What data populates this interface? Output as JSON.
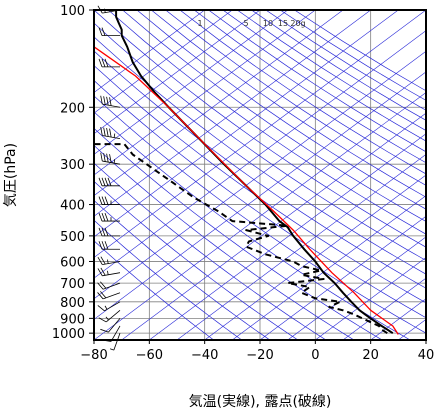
{
  "chart_data": {
    "type": "line",
    "title": "",
    "xlabel": "気温(実線), 露点(破線)",
    "ylabel": "気圧(hPa)",
    "xlim": [
      -80,
      40
    ],
    "ylim": [
      1050,
      100
    ],
    "y_scale": "log",
    "x_ticks": [
      -80,
      -60,
      -40,
      -20,
      0,
      20,
      40
    ],
    "y_ticks": [
      100,
      200,
      300,
      400,
      500,
      600,
      700,
      800,
      900,
      1000
    ],
    "mixing_ratio_labels": [
      "1",
      "5",
      "10",
      "15",
      "20g"
    ],
    "colors": {
      "temperature": "#000000",
      "dewpoint": "#000000",
      "parcel": "#ff0000",
      "dry_adiabat": "#2a2ad8",
      "isotherm": "#2a2ad8",
      "grid": "#808080",
      "wind": "#000000"
    },
    "series": [
      {
        "name": "",
        "style": "solid",
        "points": [
          [
            28,
            1000
          ],
          [
            26,
            975
          ],
          [
            24,
            950
          ],
          [
            22,
            925
          ],
          [
            20,
            900
          ],
          [
            18,
            875
          ],
          [
            16,
            850
          ],
          [
            13,
            800
          ],
          [
            10,
            750
          ],
          [
            7,
            700
          ],
          [
            3,
            650
          ],
          [
            0,
            600
          ],
          [
            -4,
            550
          ],
          [
            -8,
            500
          ],
          [
            -10,
            470
          ],
          [
            -13,
            450
          ],
          [
            -18,
            400
          ],
          [
            -25,
            350
          ],
          [
            -33,
            300
          ],
          [
            -42,
            250
          ],
          [
            -53,
            200
          ],
          [
            -58,
            180
          ],
          [
            -63,
            160
          ],
          [
            -66,
            145
          ],
          [
            -68,
            130
          ],
          [
            -70,
            120
          ],
          [
            -70,
            115
          ],
          [
            -71,
            110
          ],
          [
            -72,
            105
          ],
          [
            -72,
            100
          ]
        ]
      },
      {
        "name": "",
        "style": "dashed",
        "points": [
          [
            26,
            1000
          ],
          [
            24,
            975
          ],
          [
            23,
            950
          ],
          [
            20,
            925
          ],
          [
            17,
            900
          ],
          [
            14,
            875
          ],
          [
            10,
            850
          ],
          [
            5,
            830
          ],
          [
            9,
            800
          ],
          [
            0,
            780
          ],
          [
            -5,
            750
          ],
          [
            -2,
            720
          ],
          [
            -10,
            700
          ],
          [
            3,
            680
          ],
          [
            -5,
            660
          ],
          [
            2,
            640
          ],
          [
            -5,
            620
          ],
          [
            -8,
            600
          ],
          [
            -18,
            570
          ],
          [
            -25,
            540
          ],
          [
            -24,
            520
          ],
          [
            -17,
            500
          ],
          [
            -25,
            480
          ],
          [
            -10,
            465
          ],
          [
            -30,
            450
          ],
          [
            -35,
            420
          ],
          [
            -44,
            380
          ],
          [
            -52,
            340
          ],
          [
            -61,
            300
          ],
          [
            -66,
            280
          ],
          [
            -69,
            260
          ],
          [
            -72,
            260
          ],
          [
            -80,
            260
          ]
        ]
      },
      {
        "name": "",
        "style": "solid",
        "points": [
          [
            30,
            1010
          ],
          [
            28,
            950
          ],
          [
            20,
            850
          ],
          [
            14,
            750
          ],
          [
            6,
            650
          ],
          [
            -2,
            550
          ],
          [
            -8,
            480
          ],
          [
            -15,
            420
          ],
          [
            -25,
            350
          ],
          [
            -40,
            260
          ],
          [
            -53,
            200
          ],
          [
            -65,
            160
          ],
          [
            -80,
            130
          ]
        ]
      }
    ],
    "wind_barbs": [
      {
        "p": 1000,
        "dir": 200,
        "speed": 5
      },
      {
        "p": 950,
        "dir": 210,
        "speed": 10
      },
      {
        "p": 900,
        "dir": 220,
        "speed": 10
      },
      {
        "p": 850,
        "dir": 230,
        "speed": 15
      },
      {
        "p": 800,
        "dir": 240,
        "speed": 15
      },
      {
        "p": 750,
        "dir": 250,
        "speed": 20
      },
      {
        "p": 700,
        "dir": 250,
        "speed": 20
      },
      {
        "p": 650,
        "dir": 260,
        "speed": 25
      },
      {
        "p": 600,
        "dir": 260,
        "speed": 25
      },
      {
        "p": 550,
        "dir": 270,
        "speed": 30
      },
      {
        "p": 500,
        "dir": 270,
        "speed": 30
      },
      {
        "p": 450,
        "dir": 270,
        "speed": 35
      },
      {
        "p": 400,
        "dir": 270,
        "speed": 35
      },
      {
        "p": 350,
        "dir": 270,
        "speed": 40
      },
      {
        "p": 300,
        "dir": 280,
        "speed": 45
      },
      {
        "p": 250,
        "dir": 280,
        "speed": 45
      },
      {
        "p": 200,
        "dir": 280,
        "speed": 40
      },
      {
        "p": 150,
        "dir": 270,
        "speed": 30
      },
      {
        "p": 120,
        "dir": 270,
        "speed": 20
      },
      {
        "p": 100,
        "dir": 260,
        "speed": 15
      }
    ]
  }
}
